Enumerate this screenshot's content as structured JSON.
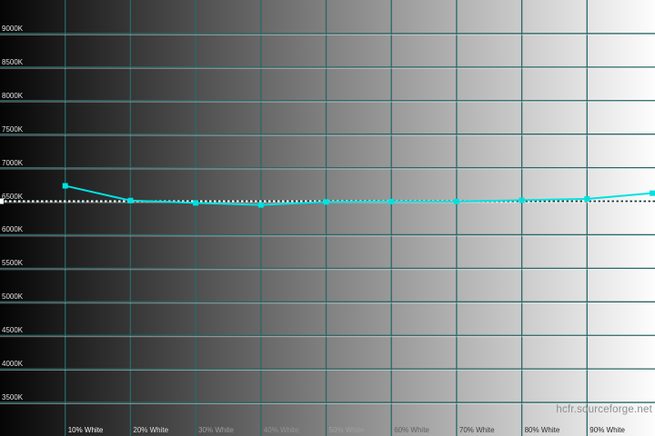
{
  "watermark": "hcfr.sourceforge.net",
  "colors": {
    "background_left": "#050505",
    "background_right": "#fdfdfd",
    "grid": "#2a6767",
    "grid_highlight": "rgba(255,255,255,0.42)",
    "curve": "#00e1e1",
    "reference_dash": "#ffffff",
    "reference_gap": "rgba(0,0,0,0.45)",
    "reference_handle": "#ffffff",
    "y_label": "#e2e2e2",
    "watermark": "#8b9191"
  },
  "chart_data": {
    "type": "line",
    "title": "",
    "xlabel": "",
    "ylabel": "",
    "grid": true,
    "legend": false,
    "ylim_kelvin": [
      3000,
      9500
    ],
    "xlim_percent": [
      0,
      100.4
    ],
    "x_percent": [
      10,
      20,
      30,
      40,
      50,
      60,
      70,
      80,
      90,
      100
    ],
    "values_kelvin": [
      6730,
      6510,
      6475,
      6445,
      6490,
      6495,
      6495,
      6515,
      6535,
      6620
    ],
    "reference_kelvin": 6500,
    "y_tick_values": [
      9000,
      8500,
      8000,
      7500,
      7000,
      6500,
      6000,
      5500,
      5000,
      4500,
      4000,
      3500
    ],
    "y_tick_labels": [
      "9000K",
      "8500K",
      "8000K",
      "7500K",
      "7000K",
      "6500K",
      "6000K",
      "5500K",
      "5000K",
      "4500K",
      "4000K",
      "3500K"
    ],
    "x_tick_values": [
      10,
      20,
      30,
      40,
      50,
      60,
      70,
      80,
      90
    ],
    "x_tick_labels": [
      "10% White",
      "20% White",
      "30% White",
      "40% White",
      "50% White",
      "60% White",
      "70% White",
      "80% White",
      "90% White"
    ],
    "x_tick_colors": [
      "#f4f4f4",
      "#dededd",
      "#9aa09f",
      "#909595",
      "#9da2a1",
      "#5d6362",
      "#3c4241",
      "#2b302f",
      "#1e2221"
    ]
  }
}
